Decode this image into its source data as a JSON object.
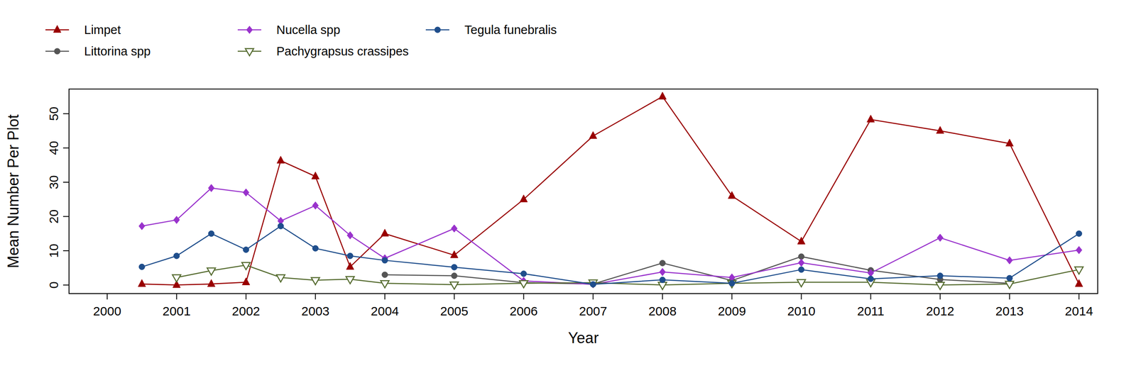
{
  "chart_data": {
    "type": "line",
    "x_label": "Year",
    "y_label": "Mean Number Per Plot",
    "x": [
      2000.5,
      2001,
      2001.5,
      2002,
      2002.5,
      2003,
      2003.5,
      2004,
      2005,
      2006,
      2007,
      2008,
      2009,
      2010,
      2011,
      2012,
      2013,
      2014
    ],
    "xlim": [
      1999.45,
      2014.27
    ],
    "xticks": [
      2000,
      2001,
      2002,
      2003,
      2004,
      2005,
      2006,
      2007,
      2008,
      2009,
      2010,
      2011,
      2012,
      2013,
      2014
    ],
    "ylim": [
      -2.5,
      57.2
    ],
    "yticks": [
      0,
      10,
      20,
      30,
      40,
      50
    ],
    "grid": false,
    "legend": "top",
    "series": [
      {
        "name": "Limpet",
        "color": "#990000",
        "marker": "triangle",
        "values": [
          0.3,
          0,
          0.3,
          0.8,
          36.3,
          31.7,
          5.3,
          15,
          8.7,
          25,
          43.5,
          55,
          26,
          12.7,
          48.3,
          45,
          41.3,
          0.3
        ]
      },
      {
        "name": "Littorina spp",
        "color": "#555555",
        "marker": "circle",
        "values": [
          null,
          null,
          null,
          null,
          null,
          null,
          null,
          3,
          2.7,
          0.7,
          0.3,
          6.4,
          1.3,
          8.3,
          4.3,
          1.6,
          0.5,
          null
        ]
      },
      {
        "name": "Nucella spp",
        "color": "#9932CC",
        "marker": "diamond",
        "values": [
          17.2,
          19,
          28.3,
          27,
          18.7,
          23.2,
          14.5,
          7.8,
          16.5,
          1.2,
          0.2,
          3.8,
          2.2,
          6.5,
          3.5,
          13.8,
          7.2,
          10.2
        ]
      },
      {
        "name": "Pachygrapsus crassipes",
        "color": "#556B2F",
        "marker": "triangle-down-open",
        "values": [
          null,
          2.2,
          4.2,
          5.8,
          2.2,
          1.4,
          1.7,
          0.5,
          0.1,
          0.5,
          0.7,
          0,
          0.5,
          0.8,
          0.8,
          0,
          0.3,
          4.5
        ]
      },
      {
        "name": "Tegula funebralis",
        "color": "#1F4E8C",
        "marker": "circle",
        "values": [
          5.3,
          8.5,
          15,
          10.3,
          17.2,
          10.7,
          8.5,
          7.2,
          5.2,
          3.3,
          0.2,
          1.5,
          0.5,
          4.5,
          1.8,
          2.7,
          2,
          15
        ]
      }
    ]
  }
}
